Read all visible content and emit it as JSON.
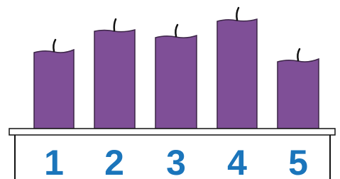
{
  "labels": [
    "1",
    "2",
    "3",
    "4",
    "5"
  ]
}
